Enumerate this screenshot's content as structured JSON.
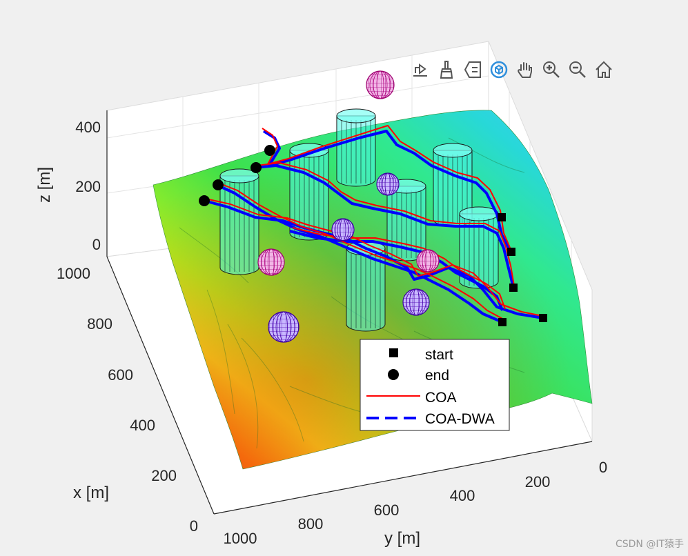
{
  "chart_data": {
    "type": "surface3d",
    "title": "",
    "xlabel": "x [m]",
    "ylabel": "y [m]",
    "zlabel": "z [m]",
    "xlim": [
      0,
      1000
    ],
    "ylim": [
      0,
      1000
    ],
    "zlim": [
      0,
      450
    ],
    "x_ticks": [
      "0",
      "200",
      "400",
      "600",
      "800",
      "1000"
    ],
    "y_ticks": [
      "0",
      "200",
      "400",
      "600",
      "800",
      "1000"
    ],
    "z_ticks": [
      "0",
      "200",
      "400"
    ],
    "grid": true,
    "legend_position": "bottom-center",
    "legend": [
      {
        "label": "start",
        "marker": "square",
        "color": "#000000"
      },
      {
        "label": "end",
        "marker": "circle",
        "color": "#000000"
      },
      {
        "label": "COA",
        "line": "solid",
        "color": "#ff0000"
      },
      {
        "label": "COA-DWA",
        "line": "dashed",
        "color": "#0000ff"
      }
    ],
    "terrain_colormap": "hsv (red low → yellow → green → cyan high)",
    "obstacles": {
      "cylinders": 7,
      "spheres": 7
    },
    "starts": 5,
    "ends": 5
  },
  "toolbar": {
    "buttons": [
      "export-icon",
      "brush-icon",
      "datatip-icon",
      "rotate3d-icon",
      "pan-icon",
      "zoom-in-icon",
      "zoom-out-icon",
      "home-icon"
    ]
  },
  "watermark": "CSDN @IT猿手"
}
